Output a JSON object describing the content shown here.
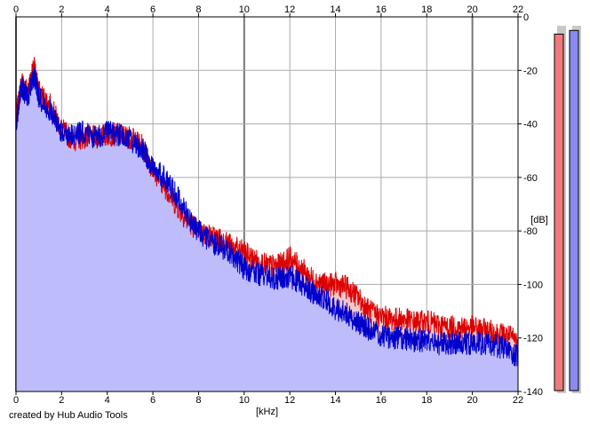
{
  "chart_data": {
    "type": "area",
    "xlabel": "[kHz]",
    "ylabel": "[dB]",
    "xlim": [
      0,
      22
    ],
    "ylim": [
      -140,
      0
    ],
    "x_ticks": [
      "0",
      "2",
      "4",
      "6",
      "8",
      "10",
      "12",
      "14",
      "16",
      "18",
      "20",
      "22"
    ],
    "y_ticks": [
      "0",
      "-20",
      "-40",
      "-60",
      "-80",
      "-100",
      "-120",
      "-140"
    ],
    "grid": true,
    "series": [
      {
        "color": "#dd0000",
        "fill": "#f4c8c8",
        "x": [
          0,
          0.25,
          0.5,
          0.8,
          1,
          1.5,
          2,
          2.5,
          3,
          3.5,
          4,
          4.5,
          5,
          5.5,
          6,
          6.5,
          7,
          7.5,
          8,
          8.5,
          9,
          9.5,
          10,
          10.5,
          11,
          11.5,
          12,
          12.5,
          13,
          13.5,
          14,
          14.5,
          15,
          15.5,
          16,
          16.5,
          17,
          17.5,
          18,
          18.5,
          19,
          19.5,
          20,
          20.5,
          21,
          21.5,
          22
        ],
        "values": [
          -38,
          -24,
          -28,
          -19,
          -28,
          -33,
          -42,
          -46,
          -45,
          -45,
          -44,
          -44,
          -45,
          -48,
          -57,
          -63,
          -70,
          -76,
          -80,
          -82,
          -83,
          -86,
          -88,
          -91,
          -93,
          -93,
          -90,
          -94,
          -98,
          -100,
          -100,
          -101,
          -105,
          -110,
          -112,
          -113,
          -113,
          -114,
          -114,
          -115,
          -116,
          -116,
          -116,
          -117,
          -118,
          -119,
          -121
        ]
      },
      {
        "color": "#0000cc",
        "fill": "#bcbcff",
        "x": [
          0,
          0.25,
          0.5,
          0.8,
          1,
          1.5,
          2,
          2.5,
          3,
          3.5,
          4,
          4.5,
          5,
          5.5,
          6,
          6.5,
          7,
          7.5,
          8,
          8.5,
          9,
          9.5,
          10,
          10.5,
          11,
          11.5,
          12,
          12.5,
          13,
          13.5,
          14,
          14.5,
          15,
          15.5,
          16,
          16.5,
          17,
          17.5,
          18,
          18.5,
          19,
          19.5,
          20,
          20.5,
          21,
          21.5,
          22
        ],
        "values": [
          -40,
          -26,
          -30,
          -22,
          -30,
          -35,
          -43,
          -44,
          -43,
          -45,
          -43,
          -44,
          -46,
          -49,
          -56,
          -60,
          -66,
          -74,
          -80,
          -84,
          -86,
          -89,
          -94,
          -96,
          -97,
          -98,
          -97,
          -100,
          -103,
          -105,
          -109,
          -111,
          -114,
          -117,
          -119,
          -120,
          -120,
          -121,
          -121,
          -122,
          -122,
          -122,
          -122,
          -122,
          -123,
          -124,
          -127
        ]
      }
    ]
  },
  "meters": [
    {
      "color": "#f07a7a",
      "level": 0.97
    },
    {
      "color": "#8a8aef",
      "level": 0.98
    }
  ],
  "credit": "created by Hub Audio Tools"
}
